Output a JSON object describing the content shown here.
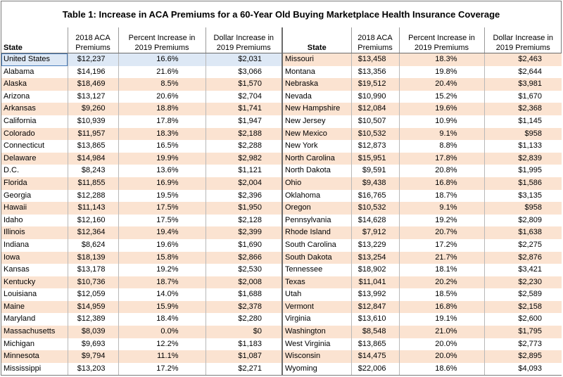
{
  "title": "Table 1: Increase in ACA Premiums for a 60-Year Old Buying Marketplace Health Insurance Coverage",
  "headers": {
    "state": "State",
    "premium_line1": "2018 ACA",
    "premium_line2": "Premiums",
    "pct_line1": "Percent Increase in",
    "pct_line2": "2019 Premiums",
    "dollar_line1": "Dollar Increase in",
    "dollar_line2": "2019 Premiums"
  },
  "left_rows": [
    {
      "state": "United States",
      "premium": "$12,237",
      "pct": "16.6%",
      "dollar": "$2,031"
    },
    {
      "state": "Alabama",
      "premium": "$14,196",
      "pct": "21.6%",
      "dollar": "$3,066"
    },
    {
      "state": "Alaska",
      "premium": "$18,469",
      "pct": "8.5%",
      "dollar": "$1,570"
    },
    {
      "state": "Arizona",
      "premium": "$13,127",
      "pct": "20.6%",
      "dollar": "$2,704"
    },
    {
      "state": "Arkansas",
      "premium": "$9,260",
      "pct": "18.8%",
      "dollar": "$1,741"
    },
    {
      "state": "California",
      "premium": "$10,939",
      "pct": "17.8%",
      "dollar": "$1,947"
    },
    {
      "state": "Colorado",
      "premium": "$11,957",
      "pct": "18.3%",
      "dollar": "$2,188"
    },
    {
      "state": "Connecticut",
      "premium": "$13,865",
      "pct": "16.5%",
      "dollar": "$2,288"
    },
    {
      "state": "Delaware",
      "premium": "$14,984",
      "pct": "19.9%",
      "dollar": "$2,982"
    },
    {
      "state": "D.C.",
      "premium": "$8,243",
      "pct": "13.6%",
      "dollar": "$1,121"
    },
    {
      "state": "Florida",
      "premium": "$11,855",
      "pct": "16.9%",
      "dollar": "$2,004"
    },
    {
      "state": "Georgia",
      "premium": "$12,288",
      "pct": "19.5%",
      "dollar": "$2,396"
    },
    {
      "state": "Hawaii",
      "premium": "$11,143",
      "pct": "17.5%",
      "dollar": "$1,950"
    },
    {
      "state": "Idaho",
      "premium": "$12,160",
      "pct": "17.5%",
      "dollar": "$2,128"
    },
    {
      "state": "Illinois",
      "premium": "$12,364",
      "pct": "19.4%",
      "dollar": "$2,399"
    },
    {
      "state": "Indiana",
      "premium": "$8,624",
      "pct": "19.6%",
      "dollar": "$1,690"
    },
    {
      "state": "Iowa",
      "premium": "$18,139",
      "pct": "15.8%",
      "dollar": "$2,866"
    },
    {
      "state": "Kansas",
      "premium": "$13,178",
      "pct": "19.2%",
      "dollar": "$2,530"
    },
    {
      "state": "Kentucky",
      "premium": "$10,736",
      "pct": "18.7%",
      "dollar": "$2,008"
    },
    {
      "state": "Louisiana",
      "premium": "$12,059",
      "pct": "14.0%",
      "dollar": "$1,688"
    },
    {
      "state": "Maine",
      "premium": "$14,959",
      "pct": "15.9%",
      "dollar": "$2,378"
    },
    {
      "state": "Maryland",
      "premium": "$12,389",
      "pct": "18.4%",
      "dollar": "$2,280"
    },
    {
      "state": "Massachusetts",
      "premium": "$8,039",
      "pct": "0.0%",
      "dollar": "$0"
    },
    {
      "state": "Michigan",
      "premium": "$9,693",
      "pct": "12.2%",
      "dollar": "$1,183"
    },
    {
      "state": "Minnesota",
      "premium": "$9,794",
      "pct": "11.1%",
      "dollar": "$1,087"
    },
    {
      "state": "Mississippi",
      "premium": "$13,203",
      "pct": "17.2%",
      "dollar": "$2,271"
    }
  ],
  "right_rows": [
    {
      "state": "Missouri",
      "premium": "$13,458",
      "pct": "18.3%",
      "dollar": "$2,463"
    },
    {
      "state": "Montana",
      "premium": "$13,356",
      "pct": "19.8%",
      "dollar": "$2,644"
    },
    {
      "state": "Nebraska",
      "premium": "$19,512",
      "pct": "20.4%",
      "dollar": "$3,981"
    },
    {
      "state": "Nevada",
      "premium": "$10,990",
      "pct": "15.2%",
      "dollar": "$1,670"
    },
    {
      "state": "New Hampshire",
      "premium": "$12,084",
      "pct": "19.6%",
      "dollar": "$2,368"
    },
    {
      "state": "New Jersey",
      "premium": "$10,507",
      "pct": "10.9%",
      "dollar": "$1,145"
    },
    {
      "state": "New Mexico",
      "premium": "$10,532",
      "pct": "9.1%",
      "dollar": "$958"
    },
    {
      "state": "New York",
      "premium": "$12,873",
      "pct": "8.8%",
      "dollar": "$1,133"
    },
    {
      "state": "North Carolina",
      "premium": "$15,951",
      "pct": "17.8%",
      "dollar": "$2,839"
    },
    {
      "state": "North Dakota",
      "premium": "$9,591",
      "pct": "20.8%",
      "dollar": "$1,995"
    },
    {
      "state": "Ohio",
      "premium": "$9,438",
      "pct": "16.8%",
      "dollar": "$1,586"
    },
    {
      "state": "Oklahoma",
      "premium": "$16,765",
      "pct": "18.7%",
      "dollar": "$3,135"
    },
    {
      "state": "Oregon",
      "premium": "$10,532",
      "pct": "9.1%",
      "dollar": "$958"
    },
    {
      "state": "Pennsylvania",
      "premium": "$14,628",
      "pct": "19.2%",
      "dollar": "$2,809"
    },
    {
      "state": "Rhode Island",
      "premium": "$7,912",
      "pct": "20.7%",
      "dollar": "$1,638"
    },
    {
      "state": "South Carolina",
      "premium": "$13,229",
      "pct": "17.2%",
      "dollar": "$2,275"
    },
    {
      "state": "South Dakota",
      "premium": "$13,254",
      "pct": "21.7%",
      "dollar": "$2,876"
    },
    {
      "state": "Tennessee",
      "premium": "$18,902",
      "pct": "18.1%",
      "dollar": "$3,421"
    },
    {
      "state": "Texas",
      "premium": "$11,041",
      "pct": "20.2%",
      "dollar": "$2,230"
    },
    {
      "state": "Utah",
      "premium": "$13,992",
      "pct": "18.5%",
      "dollar": "$2,589"
    },
    {
      "state": "Vermont",
      "premium": "$12,847",
      "pct": "16.8%",
      "dollar": "$2,158"
    },
    {
      "state": "Virginia",
      "premium": "$13,610",
      "pct": "19.1%",
      "dollar": "$2,600"
    },
    {
      "state": "Washington",
      "premium": "$8,548",
      "pct": "21.0%",
      "dollar": "$1,795"
    },
    {
      "state": "West Virginia",
      "premium": "$13,865",
      "pct": "20.0%",
      "dollar": "$2,773"
    },
    {
      "state": "Wisconsin",
      "premium": "$14,475",
      "pct": "20.0%",
      "dollar": "$2,895"
    },
    {
      "state": "Wyoming",
      "premium": "$22,006",
      "pct": "18.6%",
      "dollar": "$4,093"
    }
  ]
}
